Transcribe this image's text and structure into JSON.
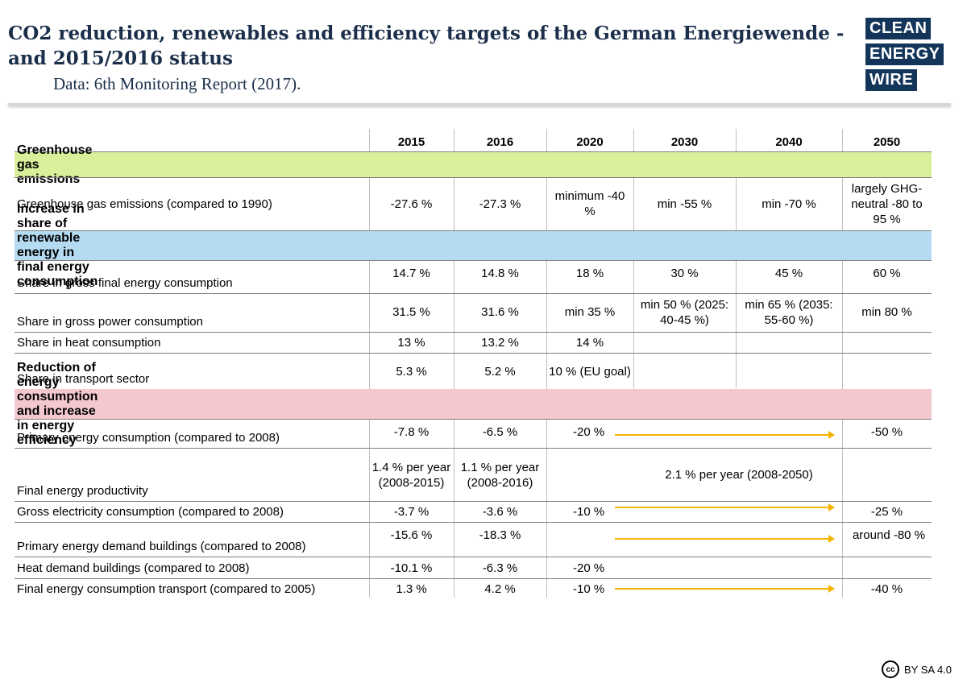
{
  "header": {
    "title": "CO2 reduction, renewables and efficiency targets of the German Energiewende - and 2015/2016 status",
    "source": "Data: 6th Monitoring Report (2017)."
  },
  "logo": {
    "line1": "CLEAN",
    "line2": "ENERGY",
    "line3": "WIRE"
  },
  "table": {
    "columns": [
      "2015",
      "2016",
      "2020",
      "2030",
      "2040",
      "2050"
    ],
    "sections": {
      "ghg": "Greenhouse gas emissions",
      "renewables": "Increase in share of renewable energy in final energy consumption",
      "efficiency": "Reduction of energy consumption and increase in energy efficiency"
    },
    "rows": {
      "ghg_emissions": {
        "label": "Greenhouse gas emissions (compared to 1990)",
        "y2015": "-27.6 %",
        "y2016": "-27.3 %",
        "y2020": "minimum -40 %",
        "y2030": "min -55 %",
        "y2040": "min -70 %",
        "y2050": "largely GHG-neutral -80 to 95 %"
      },
      "gross_final": {
        "label": "Share in gross final energy consumption",
        "y2015": "14.7 %",
        "y2016": "14.8 %",
        "y2020": "18 %",
        "y2030": "30 %",
        "y2040": "45 %",
        "y2050": "60 %"
      },
      "gross_power": {
        "label": "Share in gross power consumption",
        "y2015": "31.5 %",
        "y2016": "31.6 %",
        "y2020": "min 35 %",
        "y2030": "min 50 % (2025: 40-45 %)",
        "y2040": "min 65 % (2035: 55-60 %)",
        "y2050": "min 80 %"
      },
      "heat": {
        "label": "Share in heat consumption",
        "y2015": "13 %",
        "y2016": "13.2 %",
        "y2020": "14 %"
      },
      "transport_share": {
        "label": "Share in transport sector",
        "y2015": "5.3 %",
        "y2016": "5.2 %",
        "y2020": "10 % (EU goal)"
      },
      "primary_energy": {
        "label": "Primary energy consumption (compared to 2008)",
        "y2015": "-7.8 %",
        "y2016": "-6.5 %",
        "y2020": "-20 %",
        "y2050": "-50 %"
      },
      "productivity": {
        "label": "Final energy productivity",
        "y2015": "1.4 % per year (2008-2015)",
        "y2016": "1.1 % per year (2008-2016)",
        "target": "2.1 % per year (2008-2050)"
      },
      "gross_electricity": {
        "label": "Gross electricity consumption (compared to 2008)",
        "y2015": "-3.7 %",
        "y2016": "-3.6 %",
        "y2020": "-10 %",
        "y2050": "-25 %"
      },
      "buildings_primary": {
        "label": "Primary energy demand buildings (compared to 2008)",
        "y2015": "-15.6 %",
        "y2016": "-18.3 %",
        "y2050": "around -80 %"
      },
      "heat_buildings": {
        "label": "Heat demand buildings (compared to 2008)",
        "y2015": "-10.1 %",
        "y2016": "-6.3 %",
        "y2020": "-20 %"
      },
      "transport_final": {
        "label": "Final energy consumption transport (compared to 2005)",
        "y2015": "1.3 %",
        "y2016": "4.2 %",
        "y2020": "-10 %",
        "y2050": "-40 %"
      }
    },
    "band_colors": {
      "ghg": "#d9ef9a",
      "renewables": "#b4dbf2",
      "efficiency": "#f3c9cf"
    },
    "arrow_color": "#f5b400"
  },
  "license": {
    "badge": "cc",
    "text": "BY SA 4.0"
  }
}
